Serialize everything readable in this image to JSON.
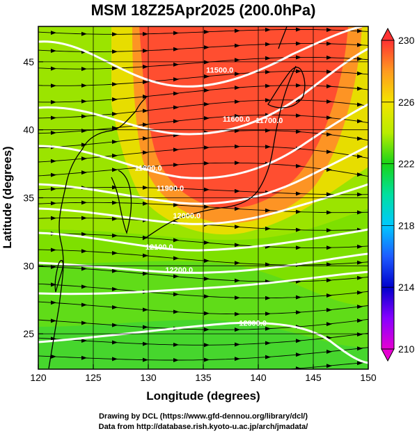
{
  "chart_data": {
    "type": "heatmap",
    "title": "MSM 18Z25Apr2025 (200.0hPa)",
    "xlabel": "Longitude (degrees)",
    "ylabel": "Latitude  (degrees)",
    "xlim": [
      120,
      150
    ],
    "ylim": [
      22.4,
      47.6
    ],
    "x_ticks": [
      120,
      125,
      130,
      135,
      140,
      145,
      150
    ],
    "y_ticks": [
      25,
      30,
      35,
      40,
      45
    ],
    "grid": true,
    "colorbar": {
      "min": 210,
      "max": 230,
      "ticks": [
        210,
        214,
        218,
        222,
        226,
        230
      ],
      "placement": "right"
    },
    "contours": [
      {
        "label": "11500.0",
        "lon": 136.5,
        "lat": 44.2
      },
      {
        "label": "11600.0",
        "lon": 138.0,
        "lat": 40.6
      },
      {
        "label": "11700.0",
        "lon": 141.0,
        "lat": 40.5
      },
      {
        "label": "11800.0",
        "lon": 130.0,
        "lat": 37.0
      },
      {
        "label": "11900.0",
        "lon": 132.0,
        "lat": 35.5
      },
      {
        "label": "12000.0",
        "lon": 133.5,
        "lat": 33.5
      },
      {
        "label": "12100.0",
        "lon": 131.0,
        "lat": 31.2
      },
      {
        "label": "12200.0",
        "lon": 132.8,
        "lat": 29.5
      },
      {
        "label": "12300.0",
        "lon": 139.5,
        "lat": 25.6
      }
    ],
    "field_description": "temperature shading, geopotential height contours, wind streamlines"
  },
  "credits": {
    "line1": "Drawing by DCL (https://www.gfd-dennou.org/library/dcl/)",
    "line2": "Data from http://database.rish.kyoto-u.ac.jp/arch/jmadata/"
  }
}
